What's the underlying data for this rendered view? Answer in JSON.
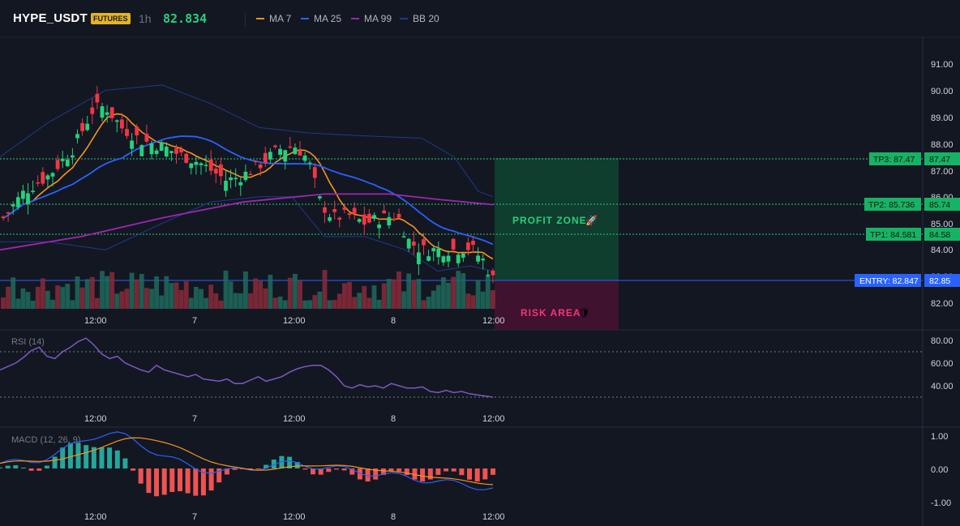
{
  "header": {
    "symbol": "HYPE_USDT",
    "market_badge": "FUTURES",
    "timeframe": "1h",
    "last_price": "82.834",
    "indicators": [
      {
        "label": "MA 7",
        "color": "#f7931a"
      },
      {
        "label": "MA 25",
        "color": "#2962ff"
      },
      {
        "label": "MA 99",
        "color": "#9c27b0"
      },
      {
        "label": "BB 20",
        "color": "#1e3a8a"
      }
    ]
  },
  "price_axis": {
    "ticks": [
      "91.00",
      "90.00",
      "89.00",
      "88.00",
      "87.00",
      "86.00",
      "85.00",
      "84.00",
      "83.00",
      "82.00"
    ]
  },
  "time_axis": {
    "ticks": [
      "12:00",
      "7",
      "12:00",
      "8",
      "12:00"
    ]
  },
  "levels": {
    "tp3": {
      "label": "TP3: 87.47",
      "axis": "87.47",
      "value": 87.47
    },
    "tp2": {
      "label": "TP2: 85.736",
      "axis": "85.74",
      "value": 85.736
    },
    "tp1": {
      "label": "TP1: 84.581",
      "axis": "84.58",
      "value": 84.581
    },
    "entry": {
      "label": "ENTRY: 82.847",
      "axis": "82.85",
      "value": 82.847
    }
  },
  "zones": {
    "profit_label": "PROFIT ZONE",
    "profit_emoji": "🚀",
    "risk_label": "RISK AREA",
    "risk_emoji": "🛡"
  },
  "rsi": {
    "title": "RSI (14)",
    "ticks": [
      "80.00",
      "60.00",
      "40.00"
    ]
  },
  "macd": {
    "title": "MACD (12, 26, 9)",
    "ticks": [
      "1.00",
      "0.00",
      "-1.00"
    ]
  },
  "colors": {
    "up": "#26d07c",
    "down": "#f23645",
    "profit_zone": "#0f3d2e",
    "risk_zone": "#4a1430",
    "entry_line": "#2962ff",
    "tp_line": "#2ecc71",
    "rsi_line": "#7e57c2",
    "macd_line": "#2962ff",
    "signal_line": "#f7931a",
    "hist_up": "#26a69a",
    "hist_down": "#ef5350"
  }
}
